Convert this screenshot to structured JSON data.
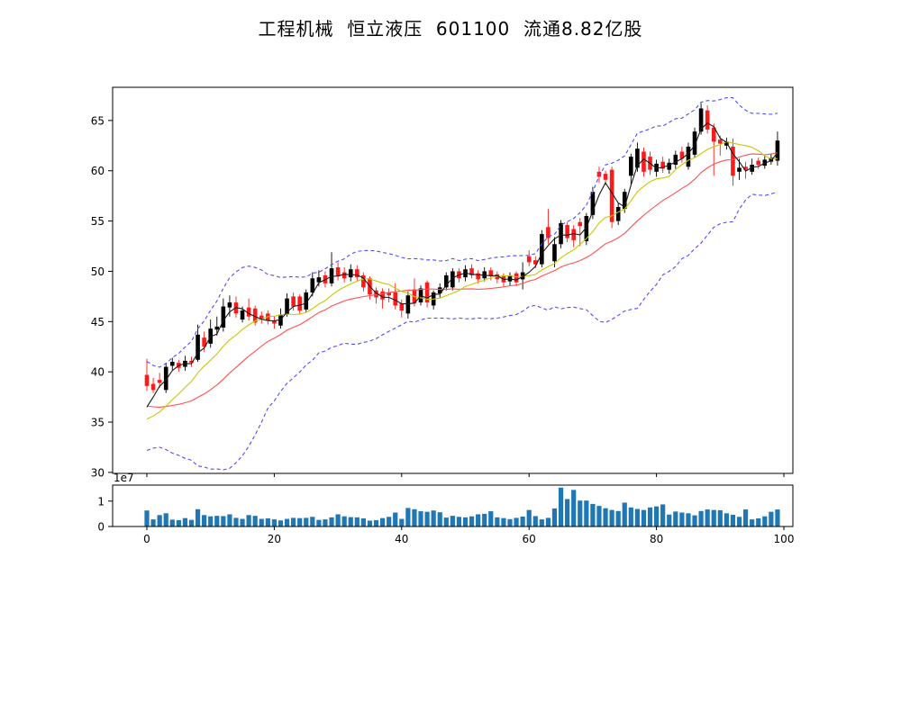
{
  "title": "工程机械  恒立液压  601100  流通8.82亿股",
  "chart_data": {
    "type": "candlestick+volume",
    "title": "工程机械  恒立液压  601100  流通8.82亿股",
    "x_index_range": [
      0,
      99
    ],
    "axes": {
      "main": {
        "ylim": [
          29.9,
          68.3
        ],
        "yticks": [
          30,
          35,
          40,
          45,
          50,
          55,
          60,
          65
        ],
        "grid": false
      },
      "volume": {
        "ylim": [
          0,
          16300000
        ],
        "yticks": [
          0,
          10000000
        ],
        "ytick_labels": [
          "0",
          "1"
        ],
        "offset_label": "1e7"
      },
      "xticks": [
        0,
        20,
        40,
        60,
        80,
        100
      ],
      "xtick_labels": [
        "0",
        "20",
        "40",
        "60",
        "80",
        "100"
      ]
    },
    "colors": {
      "candle_up": "#000000",
      "candle_down": "#ff1a1a",
      "ma_short": "#1a1a1a",
      "ma_mid": "#c8c800",
      "ma_long": "#ff5050",
      "band": "#4d4dff",
      "volume_bar": "#1f77b4",
      "axis": "#000000"
    },
    "overlays": [
      {
        "name": "ma-short",
        "type": "sma",
        "window": 3,
        "style": "solid"
      },
      {
        "name": "ma-mid",
        "type": "sma",
        "window": 10,
        "style": "solid"
      },
      {
        "name": "ma-long",
        "type": "sma",
        "window": 20,
        "style": "solid"
      },
      {
        "name": "bollinger-bands",
        "type": "sma20±2.4σ",
        "window": 20,
        "style": "dashed"
      }
    ],
    "prehistory_closes": [
      40.2,
      40.0,
      39.6,
      39.2,
      38.8,
      38.3,
      37.8,
      37.2,
      36.6,
      36.0,
      35.6,
      35.2,
      34.9,
      34.7,
      34.6,
      34.6,
      34.7,
      34.9,
      35.2,
      35.7
    ],
    "open": [
      39.7,
      38.8,
      39.2,
      38.2,
      40.6,
      40.9,
      40.5,
      41.1,
      41.2,
      43.4,
      42.8,
      44.2,
      44.4,
      46.4,
      46.9,
      45.2,
      46.4,
      46.3,
      45.6,
      45.8,
      45.1,
      44.6,
      45.7,
      47.5,
      47.5,
      46.2,
      47.9,
      48.9,
      49.6,
      48.8,
      50.4,
      49.9,
      49.4,
      50.2,
      49.6,
      49.3,
      48.1,
      48.0,
      47.9,
      47.9,
      46.8,
      45.8,
      48.2,
      46.9,
      48.9,
      46.6,
      47.8,
      48.4,
      48.4,
      50.0,
      49.4,
      50.3,
      49.8,
      49.3,
      50.1,
      49.7,
      49.5,
      49.0,
      49.8,
      49.2,
      51.5,
      51.1,
      50.7,
      54.4,
      51.0,
      52.7,
      54.6,
      54.2,
      54.9,
      53.0,
      55.6,
      59.9,
      59.7,
      60.1,
      55.0,
      56.2,
      59.5,
      60.3,
      61.9,
      61.4,
      59.9,
      60.9,
      60.1,
      60.6,
      61.9,
      60.4,
      61.6,
      63.9,
      66.0,
      64.3,
      63.1,
      62.5,
      62.4,
      59.9,
      60.4,
      59.9,
      61.0,
      60.5,
      60.9,
      61.0
    ],
    "high": [
      41.3,
      39.4,
      39.9,
      40.9,
      41.4,
      41.2,
      41.6,
      41.5,
      44.7,
      44.0,
      45.2,
      45.5,
      47.3,
      47.6,
      47.5,
      46.5,
      47.3,
      46.6,
      46.0,
      46.1,
      45.5,
      46.3,
      47.8,
      47.9,
      47.7,
      48.2,
      49.9,
      50.1,
      50.0,
      51.9,
      50.9,
      50.4,
      50.7,
      50.6,
      49.9,
      49.5,
      48.4,
      48.3,
      48.3,
      48.8,
      47.2,
      48.0,
      49.3,
      48.6,
      49.1,
      48.1,
      48.8,
      49.9,
      50.3,
      50.3,
      50.6,
      50.7,
      50.1,
      50.4,
      50.4,
      50.0,
      49.8,
      49.9,
      50.0,
      50.9,
      52.1,
      51.5,
      54.1,
      56.2,
      53.4,
      55.1,
      54.9,
      54.6,
      55.3,
      55.8,
      58.4,
      60.4,
      60.0,
      60.4,
      56.8,
      58.2,
      61.7,
      62.8,
      62.3,
      61.9,
      61.1,
      61.4,
      61.2,
      62.0,
      62.4,
      62.8,
      64.3,
      66.7,
      66.5,
      64.7,
      63.5,
      63.3,
      63.2,
      61.2,
      60.9,
      61.2,
      61.3,
      61.5,
      61.7,
      63.9
    ],
    "low": [
      38.1,
      37.9,
      38.4,
      37.9,
      40.2,
      40.0,
      40.1,
      40.5,
      41.0,
      42.0,
      42.4,
      43.6,
      44.0,
      45.5,
      45.4,
      44.9,
      45.1,
      44.6,
      44.8,
      44.7,
      44.3,
      44.3,
      45.5,
      46.1,
      45.7,
      45.9,
      47.5,
      48.5,
      48.4,
      48.5,
      49.1,
      48.9,
      49.0,
      49.0,
      48.0,
      47.2,
      46.8,
      46.3,
      46.9,
      46.2,
      45.4,
      45.3,
      46.5,
      46.6,
      46.4,
      46.2,
      47.4,
      48.1,
      48.1,
      48.9,
      49.0,
      49.3,
      48.8,
      49.0,
      49.1,
      48.8,
      48.5,
      48.6,
      48.5,
      48.2,
      50.5,
      50.3,
      50.4,
      52.7,
      50.4,
      52.3,
      52.9,
      52.4,
      52.5,
      52.6,
      55.2,
      58.8,
      58.6,
      54.3,
      54.6,
      55.8,
      58.6,
      59.9,
      59.4,
      59.6,
      59.4,
      59.8,
      59.7,
      60.2,
      60.8,
      60.1,
      61.3,
      63.6,
      63.7,
      59.5,
      61.5,
      62.1,
      58.5,
      59.1,
      59.2,
      59.6,
      60.2,
      60.2,
      60.6,
      60.5
    ],
    "close": [
      38.6,
      38.2,
      38.9,
      40.5,
      41.0,
      40.4,
      41.1,
      40.9,
      43.7,
      42.5,
      44.3,
      44.5,
      46.5,
      46.9,
      45.8,
      46.1,
      45.5,
      44.9,
      45.3,
      45.1,
      44.8,
      45.7,
      47.3,
      46.5,
      46.1,
      47.9,
      49.3,
      49.4,
      48.8,
      50.3,
      49.5,
      49.3,
      50.2,
      49.4,
      48.4,
      47.7,
      47.4,
      47.2,
      47.6,
      46.6,
      46.1,
      47.6,
      46.8,
      48.3,
      46.9,
      47.9,
      48.4,
      49.6,
      50.0,
      49.3,
      50.2,
      49.6,
      49.2,
      50.0,
      49.5,
      49.2,
      48.9,
      49.6,
      48.9,
      49.9,
      50.9,
      50.7,
      53.7,
      53.3,
      52.7,
      54.8,
      53.3,
      53.1,
      54.5,
      55.5,
      57.9,
      59.4,
      59.1,
      54.9,
      56.4,
      57.9,
      61.4,
      62.2,
      59.9,
      60.1,
      60.7,
      60.2,
      60.8,
      61.6,
      61.2,
      62.4,
      63.9,
      66.2,
      64.1,
      62.9,
      62.7,
      62.9,
      59.5,
      60.3,
      60.1,
      60.6,
      60.6,
      61.1,
      61.3,
      63.0
    ],
    "volume": [
      6300000,
      2800000,
      4500000,
      5200000,
      2700000,
      2500000,
      3300000,
      2600000,
      6800000,
      4500000,
      4000000,
      4200000,
      4100000,
      4800000,
      3400000,
      3000000,
      4500000,
      4200000,
      3000000,
      3200000,
      2800000,
      2400000,
      3000000,
      3400000,
      3300000,
      3400000,
      3800000,
      2600000,
      2800000,
      3600000,
      4800000,
      4000000,
      3700000,
      3600000,
      3200000,
      2300000,
      2500000,
      3300000,
      3800000,
      5500000,
      3000000,
      7300000,
      6800000,
      6000000,
      5800000,
      6300000,
      5600000,
      3500000,
      4200000,
      3800000,
      3600000,
      4000000,
      4800000,
      5000000,
      6000000,
      3600000,
      3300000,
      2900000,
      3400000,
      3900000,
      6500000,
      4100000,
      2800000,
      3400000,
      7100000,
      15300000,
      10800000,
      14400000,
      10200000,
      10200000,
      8900000,
      8100000,
      7200000,
      6500000,
      6100000,
      9400000,
      7500000,
      6900000,
      6500000,
      7500000,
      7900000,
      8700000,
      4700000,
      5900000,
      5500000,
      5200000,
      4400000,
      6100000,
      6700000,
      6500000,
      6400000,
      5200000,
      4600000,
      3800000,
      6700000,
      2800000,
      3200000,
      4000000,
      5800000,
      6700000
    ]
  }
}
